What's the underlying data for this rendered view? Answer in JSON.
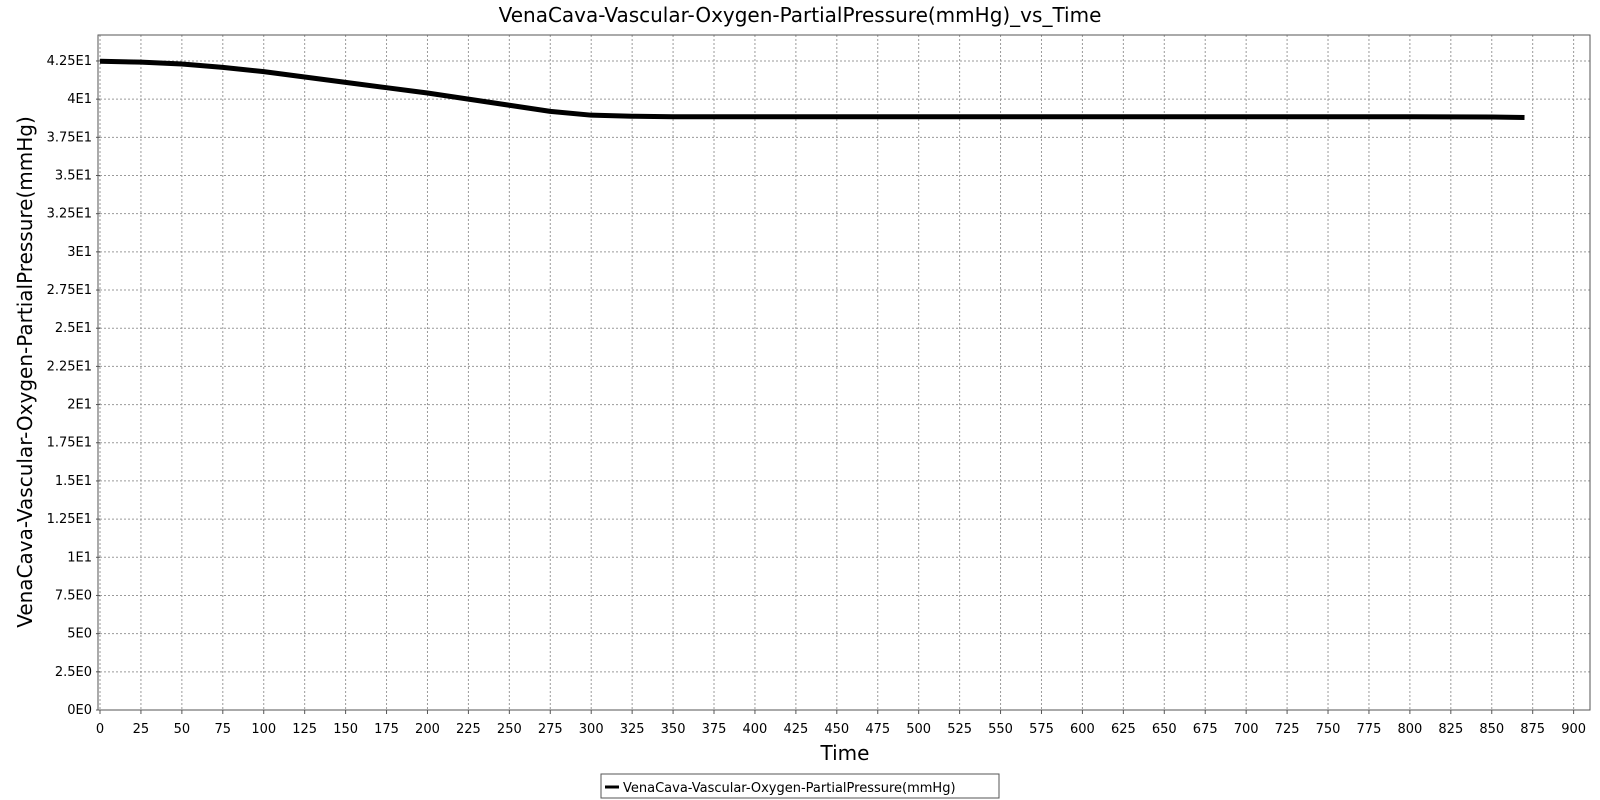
{
  "chart_data": {
    "type": "line",
    "title": "VenaCava-Vascular-Oxygen-PartialPressure(mmHg)_vs_Time",
    "xlabel": "Time",
    "ylabel": "VenaCava-Vascular-Oxygen-PartialPressure(mmHg)",
    "xlim": [
      0,
      910
    ],
    "ylim": [
      0,
      44.2
    ],
    "x_ticks": [
      0,
      25,
      50,
      75,
      100,
      125,
      150,
      175,
      200,
      225,
      250,
      275,
      300,
      325,
      350,
      375,
      400,
      425,
      450,
      475,
      500,
      525,
      550,
      575,
      600,
      625,
      650,
      675,
      700,
      725,
      750,
      775,
      800,
      825,
      850,
      875,
      900
    ],
    "x_tick_labels": [
      "0",
      "25",
      "50",
      "75",
      "100",
      "125",
      "150",
      "175",
      "200",
      "225",
      "250",
      "275",
      "300",
      "325",
      "350",
      "375",
      "400",
      "425",
      "450",
      "475",
      "500",
      "525",
      "550",
      "575",
      "600",
      "625",
      "650",
      "675",
      "700",
      "725",
      "750",
      "775",
      "800",
      "825",
      "850",
      "875",
      "900"
    ],
    "y_ticks": [
      0,
      2.5,
      5,
      7.5,
      10,
      12.5,
      15,
      17.5,
      20,
      22.5,
      25,
      27.5,
      30,
      32.5,
      35,
      37.5,
      40,
      42.5
    ],
    "y_tick_labels": [
      "0E0",
      "2.5E0",
      "5E0",
      "7.5E0",
      "1E1",
      "1.25E1",
      "1.5E1",
      "1.75E1",
      "2E1",
      "2.25E1",
      "2.5E1",
      "2.75E1",
      "3E1",
      "3.25E1",
      "3.5E1",
      "3.75E1",
      "4E1",
      "4.25E1"
    ],
    "grid": true,
    "legend_position": "bottom-center",
    "series": [
      {
        "name": "VenaCava-Vascular-Oxygen-PartialPressure(mmHg)",
        "color": "#000000",
        "x": [
          0,
          25,
          50,
          75,
          100,
          125,
          150,
          175,
          200,
          225,
          250,
          275,
          300,
          325,
          350,
          375,
          400,
          450,
          500,
          550,
          600,
          650,
          700,
          750,
          800,
          850,
          870
        ],
        "y": [
          42.48,
          42.42,
          42.3,
          42.08,
          41.8,
          41.45,
          41.1,
          40.75,
          40.4,
          40.0,
          39.6,
          39.2,
          38.95,
          38.88,
          38.85,
          38.85,
          38.85,
          38.85,
          38.85,
          38.85,
          38.85,
          38.85,
          38.85,
          38.85,
          38.85,
          38.83,
          38.8
        ]
      }
    ]
  }
}
